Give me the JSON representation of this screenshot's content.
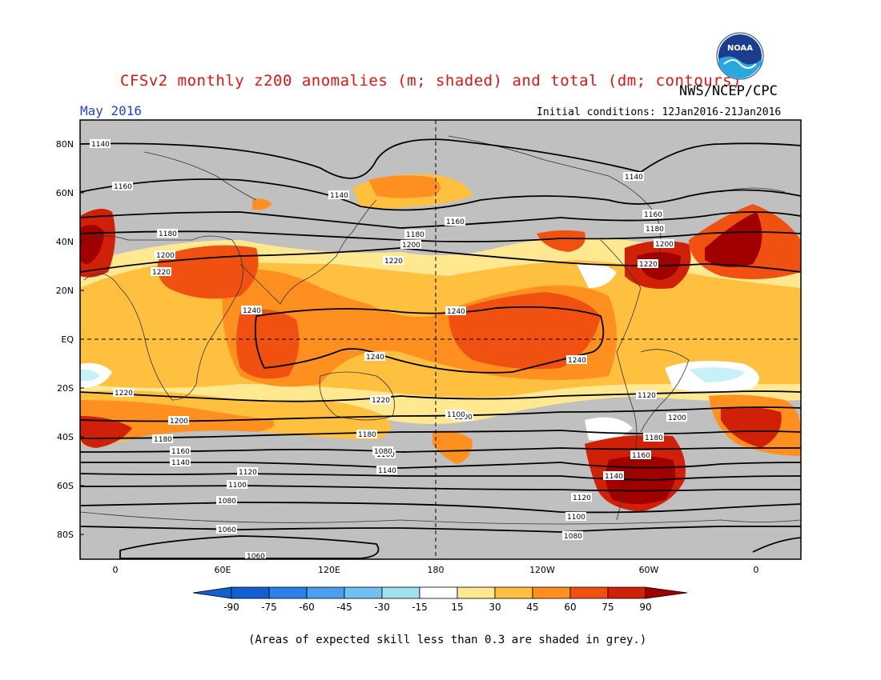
{
  "header": {
    "title": "CFSv2 monthly z200 anomalies (m; shaded) and total (dm; contours)",
    "month": "May 2016",
    "agency": "NWS/NCEP/CPC",
    "initial_conditions": "Initial conditions: 12Jan2016-21Jan2016",
    "logo_text": "NOAA"
  },
  "map": {
    "lat_labels": [
      "80N",
      "60N",
      "40N",
      "20N",
      "EQ",
      "20S",
      "40S",
      "60S",
      "80S"
    ],
    "lon_labels": [
      "0",
      "60E",
      "120E",
      "180",
      "120W",
      "60W",
      "0"
    ],
    "contour_labels": [
      "1140",
      "1160",
      "1180",
      "1200",
      "1220",
      "1240",
      "1240",
      "1240",
      "1240",
      "1220",
      "1200",
      "1180",
      "1160",
      "1140",
      "1120",
      "1100",
      "1080",
      "1060",
      "1140",
      "1160",
      "1180",
      "1200",
      "1220",
      "1220",
      "1200",
      "1180",
      "1160",
      "1140",
      "1120",
      "1100",
      "1080",
      "1140",
      "1160",
      "1180",
      "1200",
      "1220",
      "1200",
      "1180",
      "1160",
      "1140",
      "1120",
      "1100",
      "1080",
      "1060"
    ],
    "colors": {
      "skill_grey": "#c0c0c0",
      "neutral": "#ffffff",
      "p15": "#ffe890",
      "p30": "#ffc040",
      "p45": "#ff9020",
      "p60": "#f05010",
      "p75": "#d02008",
      "p90": "#a00000",
      "n15": "#c8f0f8",
      "n30": "#a0e0f0",
      "n45": "#70c0f0",
      "n60": "#4aa0f0",
      "n75": "#2a80e8",
      "n90": "#1060d0"
    }
  },
  "colorbar": {
    "labels": [
      "-90",
      "-75",
      "-60",
      "-45",
      "-30",
      "-15",
      "15",
      "30",
      "45",
      "60",
      "75",
      "90"
    ],
    "colors": [
      "#1060d0",
      "#2a80e8",
      "#4aa0f0",
      "#70c0f0",
      "#a0e0f0",
      "#c8f0f8",
      "#ffffff",
      "#ffe890",
      "#ffc040",
      "#ff9020",
      "#f05010",
      "#d02008",
      "#a00000"
    ]
  },
  "footer": {
    "note": "(Areas of expected skill less than 0.3 are shaded in grey.)"
  }
}
